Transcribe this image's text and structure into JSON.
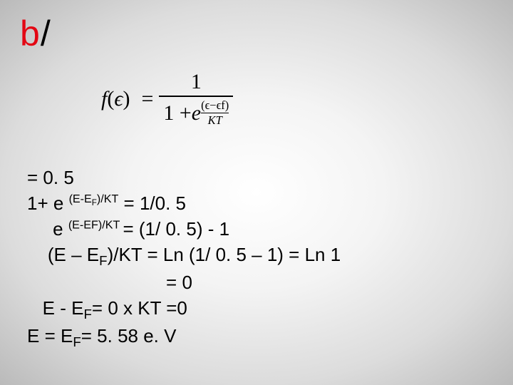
{
  "slide": {
    "background": {
      "type": "radial-gradient",
      "stops": [
        "#ffffff",
        "#f4f4f4",
        "#dcdcdc",
        "#bababa"
      ]
    },
    "heading": {
      "part1": "b",
      "part1_color": "#e30613",
      "part2": "/",
      "part2_color": "#000000",
      "fontsize": 50
    },
    "formula": {
      "lhs_fn": "f",
      "lhs_open": "(",
      "lhs_var": "ϵ",
      "lhs_close": ")",
      "eq": "=",
      "numerator": "1",
      "den_prefix": "1 + ",
      "den_e": "e",
      "exp_numer_open": "(",
      "exp_numer_a": "ϵ",
      "exp_numer_minus": "−",
      "exp_numer_b": "ϵf",
      "exp_numer_close": ")",
      "exp_slash": "/",
      "exp_denom": "KT",
      "font_family": "Times New Roman",
      "fontsize": 30
    },
    "lines": {
      "fontsize": 26,
      "l1": "= 0. 5",
      "l2_a": "1+ e ",
      "l2_sup": "(E-E",
      "l2_sup_sub": "F",
      "l2_sup_tail": ")/KT",
      "l2_b": " = 1/0. 5",
      "l3_a": "     e ",
      "l3_sup": "(E-EF)/KT ",
      "l3_b": "= (1/ 0. 5) - 1",
      "l4_a": "    (E – E",
      "l4_sub": "F",
      "l4_b": ")/KT = Ln (1/ 0. 5 – 1) = Ln 1",
      "l5": "                           = 0",
      "l6_a": "   E - E",
      "l6_sub": "F",
      "l6_b": "= 0 x KT =0",
      "l7_a": "E = E",
      "l7_sub": "F",
      "l7_b": "= 5. 58 e. V"
    }
  }
}
